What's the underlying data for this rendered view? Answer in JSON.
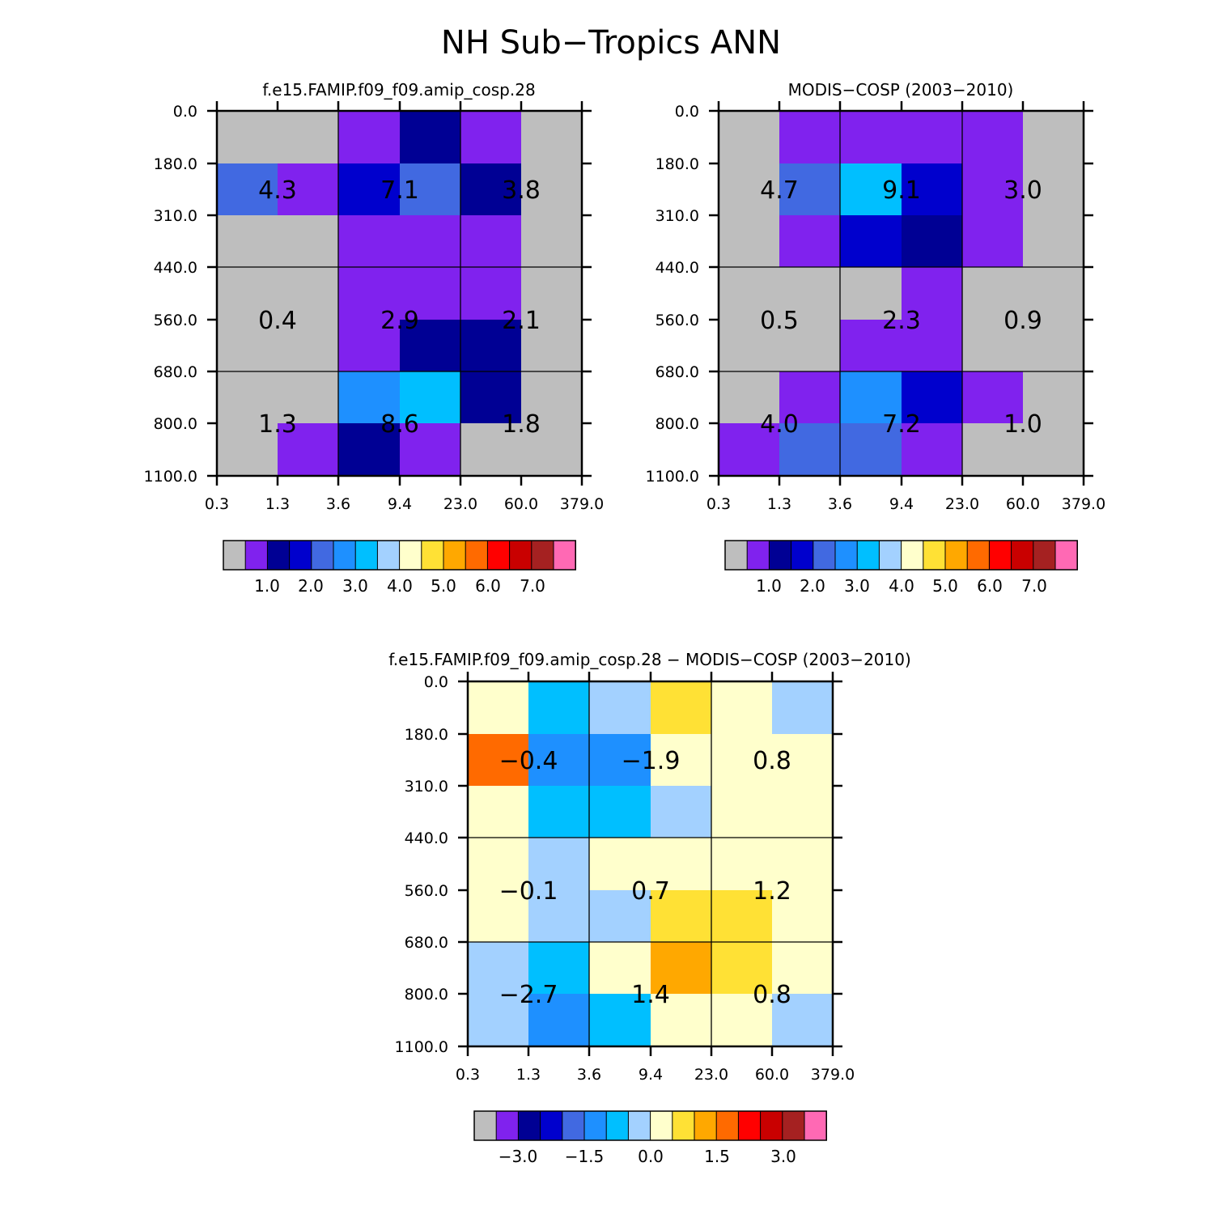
{
  "page": {
    "title": "NH Sub−Tropics ANN"
  },
  "palette": {
    "colors": [
      "#BEBEBE",
      "#8022EE",
      "#000094",
      "#0000CD",
      "#4169E1",
      "#1E90FF",
      "#00BFFF",
      "#A3D1FF",
      "#FFFFCC",
      "#FFE135",
      "#FFA800",
      "#FF6A00",
      "#FF0000",
      "#C90000",
      "#A52121",
      "#FF69B4"
    ]
  },
  "chart_data": [
    {
      "id": "model",
      "type": "heatmap",
      "title": "f.e15.FAMIP.f09_f09.amip_cosp.28",
      "x_ticks": [
        "0.3",
        "1.3",
        "3.6",
        "9.4",
        "23.0",
        "60.0",
        "379.0"
      ],
      "y_ticks": [
        "0.0",
        "180.0",
        "310.0",
        "440.0",
        "560.0",
        "680.0",
        "800.0",
        "1100.0"
      ],
      "cells": [
        [
          0,
          0,
          1,
          2,
          1,
          0
        ],
        [
          4,
          1,
          3,
          4,
          2,
          0
        ],
        [
          0,
          0,
          1,
          1,
          1,
          0
        ],
        [
          0,
          0,
          1,
          1,
          1,
          0
        ],
        [
          0,
          0,
          1,
          2,
          2,
          0
        ],
        [
          0,
          0,
          5,
          6,
          2,
          0
        ],
        [
          0,
          1,
          2,
          1,
          0,
          0
        ]
      ],
      "box_values": [
        [
          "4.3",
          "7.1",
          "3.8"
        ],
        [
          "0.4",
          "2.9",
          "2.1"
        ],
        [
          "1.3",
          "8.6",
          "1.8"
        ]
      ],
      "colorbar_labels": [
        "1.0",
        "2.0",
        "3.0",
        "4.0",
        "5.0",
        "6.0",
        "7.0"
      ]
    },
    {
      "id": "obs",
      "type": "heatmap",
      "title": "MODIS−COSP (2003−2010)",
      "x_ticks": [
        "0.3",
        "1.3",
        "3.6",
        "9.4",
        "23.0",
        "60.0",
        "379.0"
      ],
      "y_ticks": [
        "0.0",
        "180.0",
        "310.0",
        "440.0",
        "560.0",
        "680.0",
        "800.0",
        "1100.0"
      ],
      "cells": [
        [
          0,
          1,
          1,
          1,
          1,
          0
        ],
        [
          0,
          4,
          6,
          3,
          1,
          0
        ],
        [
          0,
          1,
          3,
          2,
          1,
          0
        ],
        [
          0,
          0,
          0,
          1,
          0,
          0
        ],
        [
          0,
          0,
          1,
          1,
          0,
          0
        ],
        [
          0,
          1,
          5,
          3,
          1,
          0
        ],
        [
          1,
          4,
          4,
          1,
          0,
          0
        ]
      ],
      "box_values": [
        [
          "4.7",
          "9.1",
          "3.0"
        ],
        [
          "0.5",
          "2.3",
          "0.9"
        ],
        [
          "4.0",
          "7.2",
          "1.0"
        ]
      ],
      "colorbar_labels": [
        "1.0",
        "2.0",
        "3.0",
        "4.0",
        "5.0",
        "6.0",
        "7.0"
      ]
    },
    {
      "id": "diff",
      "type": "heatmap",
      "title": "f.e15.FAMIP.f09_f09.amip_cosp.28 − MODIS−COSP (2003−2010)",
      "x_ticks": [
        "0.3",
        "1.3",
        "3.6",
        "9.4",
        "23.0",
        "60.0",
        "379.0"
      ],
      "y_ticks": [
        "0.0",
        "180.0",
        "310.0",
        "440.0",
        "560.0",
        "680.0",
        "800.0",
        "1100.0"
      ],
      "cells": [
        [
          8,
          6,
          7,
          9,
          8,
          7
        ],
        [
          11,
          5,
          5,
          8,
          8,
          8
        ],
        [
          8,
          6,
          6,
          7,
          8,
          8
        ],
        [
          8,
          7,
          8,
          8,
          8,
          8
        ],
        [
          8,
          7,
          7,
          9,
          9,
          8
        ],
        [
          7,
          6,
          8,
          10,
          9,
          8
        ],
        [
          7,
          5,
          6,
          8,
          8,
          7
        ]
      ],
      "box_values": [
        [
          "−0.4",
          "−1.9",
          "0.8"
        ],
        [
          "−0.1",
          "0.7",
          "1.2"
        ],
        [
          "−2.7",
          "1.4",
          "0.8"
        ]
      ],
      "colorbar_labels": [
        "−3.0",
        "−1.5",
        "0.0",
        "1.5",
        "3.0"
      ]
    }
  ]
}
